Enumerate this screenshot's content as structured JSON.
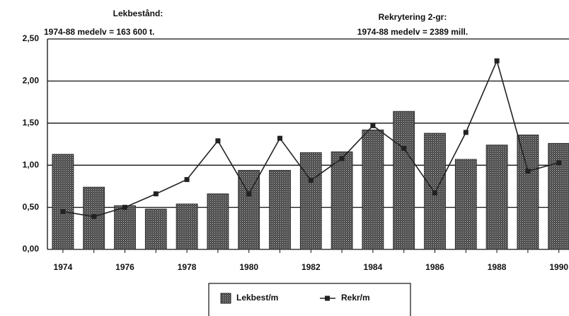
{
  "chart_data": {
    "type": "bar",
    "annotations": [
      "Lekbestånd:",
      "1974-88 medelv = 163 600 t.",
      "Rekrytering 2-gr:",
      "1974-88 medelv = 2389 mill."
    ],
    "categories": [
      "1974",
      null,
      "1976",
      null,
      "1978",
      null,
      "1980",
      null,
      "1982",
      null,
      "1984",
      null,
      "1986",
      null,
      "1988",
      null,
      "1990"
    ],
    "series": [
      {
        "name": "Lekbest/m",
        "type": "bar",
        "color": "#555555",
        "values": [
          1.13,
          0.74,
          0.52,
          0.48,
          0.54,
          0.66,
          0.94,
          0.94,
          1.15,
          1.16,
          1.42,
          1.64,
          1.38,
          1.07,
          1.24,
          1.36,
          1.26
        ]
      },
      {
        "name": "Rekr/m",
        "type": "line",
        "color": "#222222",
        "values": [
          0.45,
          0.39,
          0.5,
          0.66,
          0.83,
          1.29,
          0.66,
          1.32,
          0.82,
          1.08,
          1.47,
          1.2,
          0.67,
          1.39,
          2.24,
          0.93,
          1.03
        ]
      }
    ],
    "ylim": [
      0,
      2.5
    ],
    "yticks": [
      {
        "value": 0,
        "label": "0,00"
      },
      {
        "value": 0.5,
        "label": "0,50"
      },
      {
        "value": 1,
        "label": "1,00"
      },
      {
        "value": 1.5,
        "label": "1,50"
      },
      {
        "value": 2,
        "label": "2,00"
      },
      {
        "value": 2.5,
        "label": "2,50"
      }
    ],
    "grid": true,
    "legend": "bottom"
  }
}
